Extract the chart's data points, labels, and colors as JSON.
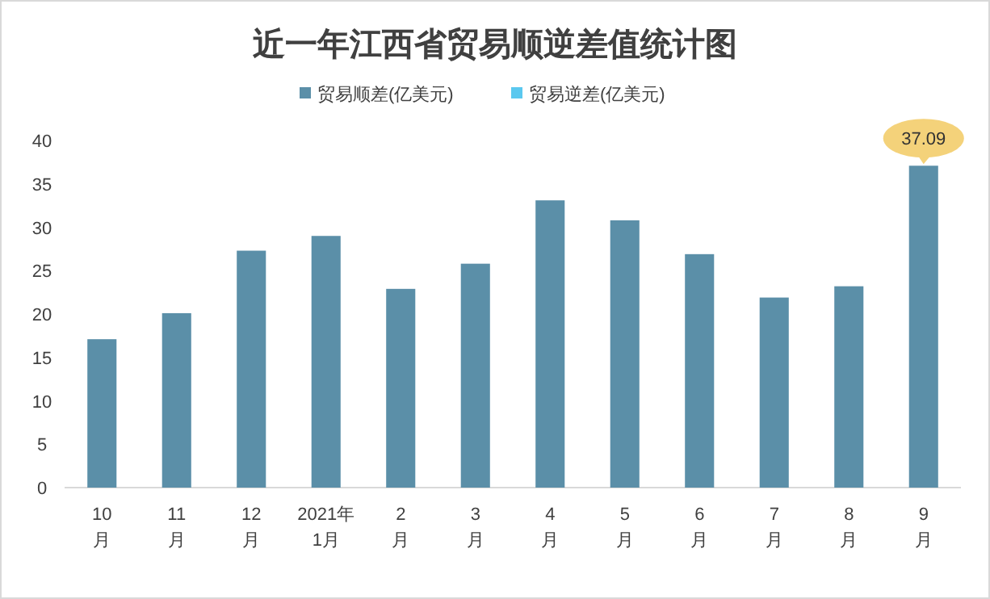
{
  "chart_data": {
    "type": "bar",
    "title": "近一年江西省贸易顺逆差值统计图",
    "categories": [
      "10\n月",
      "11\n月",
      "12\n月",
      "2021年\n1月",
      "2\n月",
      "3\n月",
      "4\n月",
      "5\n月",
      "6\n月",
      "7\n月",
      "8\n月",
      "9\n月"
    ],
    "series": [
      {
        "name": "贸易顺差(亿美元)",
        "color": "#5b8fa8",
        "values": [
          17.1,
          20.1,
          27.3,
          29.0,
          22.9,
          25.8,
          33.1,
          30.8,
          26.9,
          21.9,
          23.2,
          37.09
        ],
        "value_labels": [
          null,
          null,
          null,
          null,
          null,
          null,
          null,
          null,
          null,
          null,
          null,
          "37.09"
        ]
      },
      {
        "name": "贸易逆差(亿美元)",
        "color": "#5bc8ef",
        "values": [
          null,
          null,
          null,
          null,
          null,
          null,
          null,
          null,
          null,
          null,
          null,
          null
        ]
      }
    ],
    "ylim": [
      0,
      40
    ],
    "yticks": [
      0,
      5,
      10,
      15,
      20,
      25,
      30,
      35,
      40
    ],
    "legend": "top"
  }
}
